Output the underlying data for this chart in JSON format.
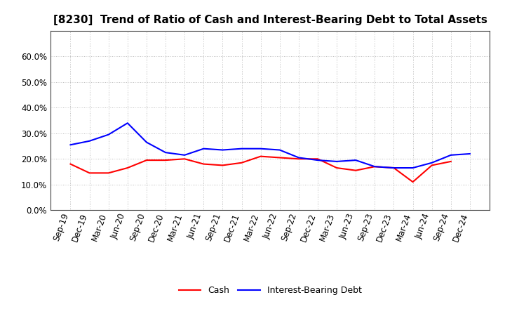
{
  "title": "[8230]  Trend of Ratio of Cash and Interest-Bearing Debt to Total Assets",
  "x_labels": [
    "Sep-19",
    "Dec-19",
    "Mar-20",
    "Jun-20",
    "Sep-20",
    "Dec-20",
    "Mar-21",
    "Jun-21",
    "Sep-21",
    "Dec-21",
    "Mar-22",
    "Jun-22",
    "Sep-22",
    "Dec-22",
    "Mar-23",
    "Jun-23",
    "Sep-23",
    "Dec-23",
    "Mar-24",
    "Jun-24",
    "Sep-24",
    "Dec-24"
  ],
  "cash": [
    0.18,
    0.145,
    0.145,
    0.165,
    0.195,
    0.195,
    0.2,
    0.18,
    0.175,
    0.185,
    0.21,
    0.205,
    0.2,
    0.2,
    0.165,
    0.155,
    0.17,
    0.165,
    0.11,
    0.175,
    0.19,
    null
  ],
  "interest_bearing_debt": [
    0.255,
    0.27,
    0.295,
    0.34,
    0.265,
    0.225,
    0.215,
    0.24,
    0.235,
    0.24,
    0.24,
    0.235,
    0.205,
    0.195,
    0.19,
    0.195,
    0.17,
    0.165,
    0.165,
    0.185,
    0.215,
    0.22
  ],
  "cash_color": "#ff0000",
  "debt_color": "#0000ff",
  "ylim": [
    0.0,
    0.7
  ],
  "yticks": [
    0.0,
    0.1,
    0.2,
    0.3,
    0.4,
    0.5,
    0.6
  ],
  "background_color": "#ffffff",
  "grid_color": "#aaaaaa",
  "legend_cash": "Cash",
  "legend_debt": "Interest-Bearing Debt",
  "title_fontsize": 11,
  "tick_fontsize": 8.5,
  "line_width": 1.5
}
